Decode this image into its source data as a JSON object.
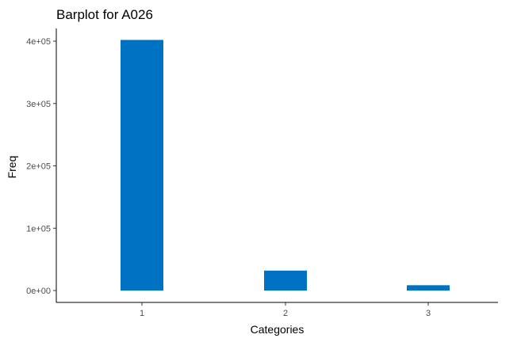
{
  "chart_data": {
    "type": "bar",
    "title": "Barplot for A026",
    "xlabel": "Categories",
    "ylabel": "Freq",
    "categories": [
      "1",
      "2",
      "3"
    ],
    "values": [
      402000,
      32000,
      8500
    ],
    "ylim": [
      0,
      420000
    ],
    "yticks": [
      0,
      100000,
      200000,
      300000,
      400000
    ],
    "ytick_labels": [
      "0e+00",
      "1e+05",
      "2e+05",
      "3e+05",
      "4e+05"
    ],
    "bar_color": "#0072C3",
    "grid": false,
    "legend": "none"
  }
}
